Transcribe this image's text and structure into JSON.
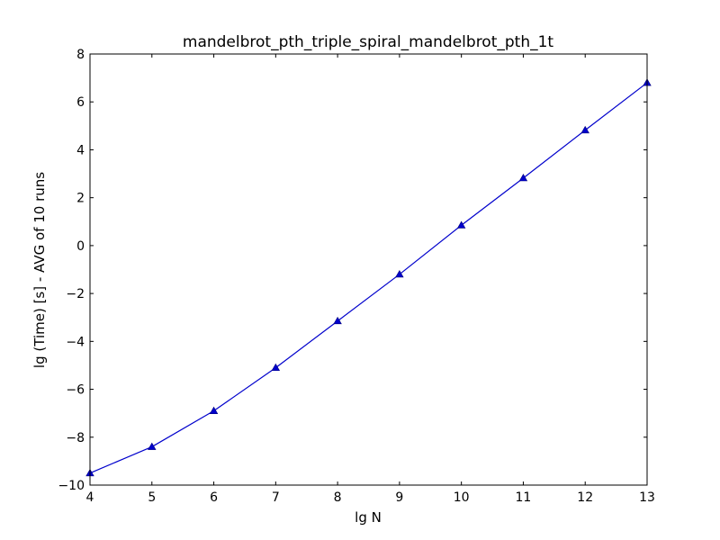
{
  "chart_data": {
    "type": "line",
    "title": "mandelbrot_pth_triple_spiral_mandelbrot_pth_1t",
    "xlabel": "lg N",
    "ylabel": "lg (Time) [s] - AVG of 10 runs",
    "xlim": [
      4,
      13
    ],
    "ylim": [
      -10,
      8
    ],
    "xticks": [
      4,
      5,
      6,
      7,
      8,
      9,
      10,
      11,
      12,
      13
    ],
    "yticks": [
      -10,
      -8,
      -6,
      -4,
      -2,
      0,
      2,
      4,
      6,
      8
    ],
    "xtick_labels": [
      "4",
      "5",
      "6",
      "7",
      "8",
      "9",
      "10",
      "11",
      "12",
      "13"
    ],
    "ytick_labels": [
      "−10",
      "−8",
      "−6",
      "−4",
      "−2",
      "0",
      "2",
      "4",
      "6",
      "8"
    ],
    "grid": false,
    "legend": "none",
    "series": [
      {
        "color": "#0000cc",
        "marker": "triangle-up",
        "x": [
          4,
          5,
          6,
          7,
          8,
          9,
          10,
          11,
          12,
          13
        ],
        "y": [
          -9.5,
          -8.4,
          -6.9,
          -5.1,
          -3.15,
          -1.2,
          0.85,
          2.82,
          4.82,
          6.8
        ]
      }
    ]
  }
}
